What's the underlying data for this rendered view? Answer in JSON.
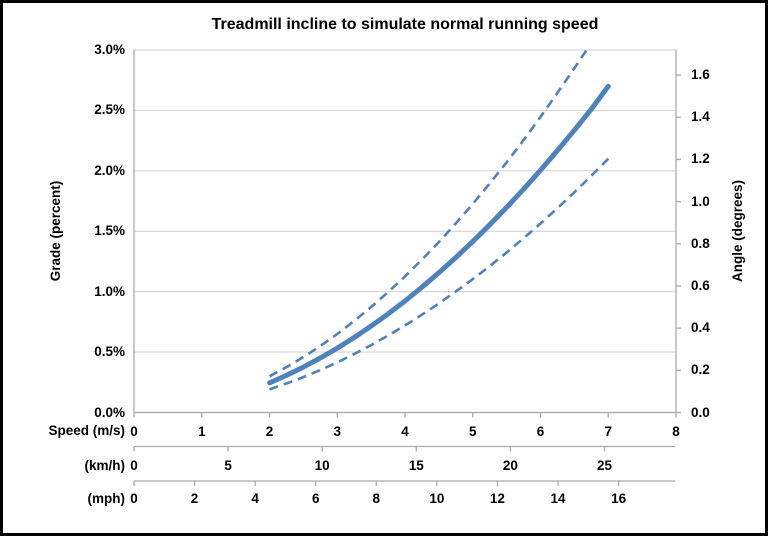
{
  "chart_data": {
    "type": "line",
    "title": "Treadmill incline to simulate normal running speed",
    "grid": "horizontal",
    "legend": "none",
    "colors": {
      "line": "#4F81BD",
      "grid": "#D6D6D6",
      "axis": "#ABABAB",
      "text": "#000000"
    },
    "y_left": {
      "label": "Grade (percent)",
      "range": [
        0,
        3.0
      ],
      "tick_values": [
        0,
        0.5,
        1.0,
        1.5,
        2.0,
        2.5,
        3.0
      ],
      "tick_labels": [
        "0.0%",
        "0.5%",
        "1.0%",
        "1.5%",
        "2.0%",
        "2.5%",
        "3.0%"
      ]
    },
    "y_right": {
      "label": "Angle (degrees)",
      "range": [
        0,
        1.719
      ],
      "tick_values": [
        0,
        0.2,
        0.4,
        0.6,
        0.8,
        1.0,
        1.2,
        1.4,
        1.6
      ],
      "tick_labels": [
        "0.0",
        "0.2",
        "0.4",
        "0.6",
        "0.8",
        "1.0",
        "1.2",
        "1.4",
        "1.6"
      ]
    },
    "x_axes": [
      {
        "label": "Speed (m/s)",
        "unit": "m/s",
        "to_ms": 1,
        "range": [
          0,
          8
        ],
        "tick_values": [
          0,
          1,
          2,
          3,
          4,
          5,
          6,
          7,
          8
        ],
        "tick_labels": [
          "0",
          "1",
          "2",
          "3",
          "4",
          "5",
          "6",
          "7",
          "8"
        ]
      },
      {
        "label": "(km/h)",
        "unit": "km/h",
        "to_ms": 0.27778,
        "range": [
          0,
          28.8
        ],
        "tick_values": [
          0,
          5,
          10,
          15,
          20,
          25
        ],
        "tick_labels": [
          "0",
          "5",
          "10",
          "15",
          "20",
          "25"
        ]
      },
      {
        "label": "(mph)",
        "unit": "mph",
        "to_ms": 0.44704,
        "range": [
          0,
          17.9
        ],
        "tick_values": [
          0,
          2,
          4,
          6,
          8,
          10,
          12,
          14,
          16
        ],
        "tick_labels": [
          "0",
          "2",
          "4",
          "6",
          "8",
          "10",
          "12",
          "14",
          "16"
        ]
      }
    ],
    "series": [
      {
        "id": "grade-estimate",
        "style": "solid",
        "stroke_width": 5,
        "points": [
          [
            2.0,
            0.245
          ],
          [
            2.25,
            0.307
          ],
          [
            2.5,
            0.376
          ],
          [
            2.75,
            0.451
          ],
          [
            3.0,
            0.533
          ],
          [
            3.25,
            0.621
          ],
          [
            3.5,
            0.715
          ],
          [
            3.75,
            0.816
          ],
          [
            4.0,
            0.923
          ],
          [
            4.25,
            1.037
          ],
          [
            4.5,
            1.157
          ],
          [
            4.75,
            1.283
          ],
          [
            5.0,
            1.415
          ],
          [
            5.25,
            1.553
          ],
          [
            5.5,
            1.697
          ],
          [
            5.75,
            1.848
          ],
          [
            6.0,
            2.005
          ],
          [
            6.25,
            2.168
          ],
          [
            6.5,
            2.336
          ],
          [
            6.75,
            2.511
          ],
          [
            7.0,
            2.7
          ]
        ]
      },
      {
        "id": "upper-dashed-bound",
        "style": "dashed",
        "stroke_width": 2.6,
        "points": [
          [
            2.0,
            0.3
          ],
          [
            2.25,
            0.375
          ],
          [
            2.5,
            0.459
          ],
          [
            2.75,
            0.55
          ],
          [
            3.0,
            0.65
          ],
          [
            3.25,
            0.758
          ],
          [
            3.5,
            0.873
          ],
          [
            3.75,
            0.996
          ],
          [
            4.0,
            1.126
          ],
          [
            4.25,
            1.265
          ],
          [
            4.5,
            1.411
          ],
          [
            4.75,
            1.565
          ],
          [
            5.0,
            1.726
          ],
          [
            5.25,
            1.895
          ],
          [
            5.5,
            2.07
          ],
          [
            5.75,
            2.254
          ],
          [
            6.0,
            2.446
          ],
          [
            6.25,
            2.645
          ],
          [
            6.5,
            2.85
          ],
          [
            6.68,
            3.0
          ]
        ]
      },
      {
        "id": "lower-dashed-bound",
        "style": "dashed",
        "stroke_width": 2.6,
        "points": [
          [
            2.0,
            0.191
          ],
          [
            2.25,
            0.24
          ],
          [
            2.5,
            0.293
          ],
          [
            2.75,
            0.352
          ],
          [
            3.0,
            0.415
          ],
          [
            3.25,
            0.484
          ],
          [
            3.5,
            0.558
          ],
          [
            3.75,
            0.637
          ],
          [
            4.0,
            0.72
          ],
          [
            4.25,
            0.809
          ],
          [
            4.5,
            0.902
          ],
          [
            4.75,
            1.001
          ],
          [
            5.0,
            1.104
          ],
          [
            5.25,
            1.211
          ],
          [
            5.5,
            1.324
          ],
          [
            5.75,
            1.442
          ],
          [
            6.0,
            1.564
          ],
          [
            6.25,
            1.691
          ],
          [
            6.5,
            1.822
          ],
          [
            6.75,
            1.959
          ],
          [
            7.0,
            2.1
          ]
        ]
      }
    ]
  }
}
